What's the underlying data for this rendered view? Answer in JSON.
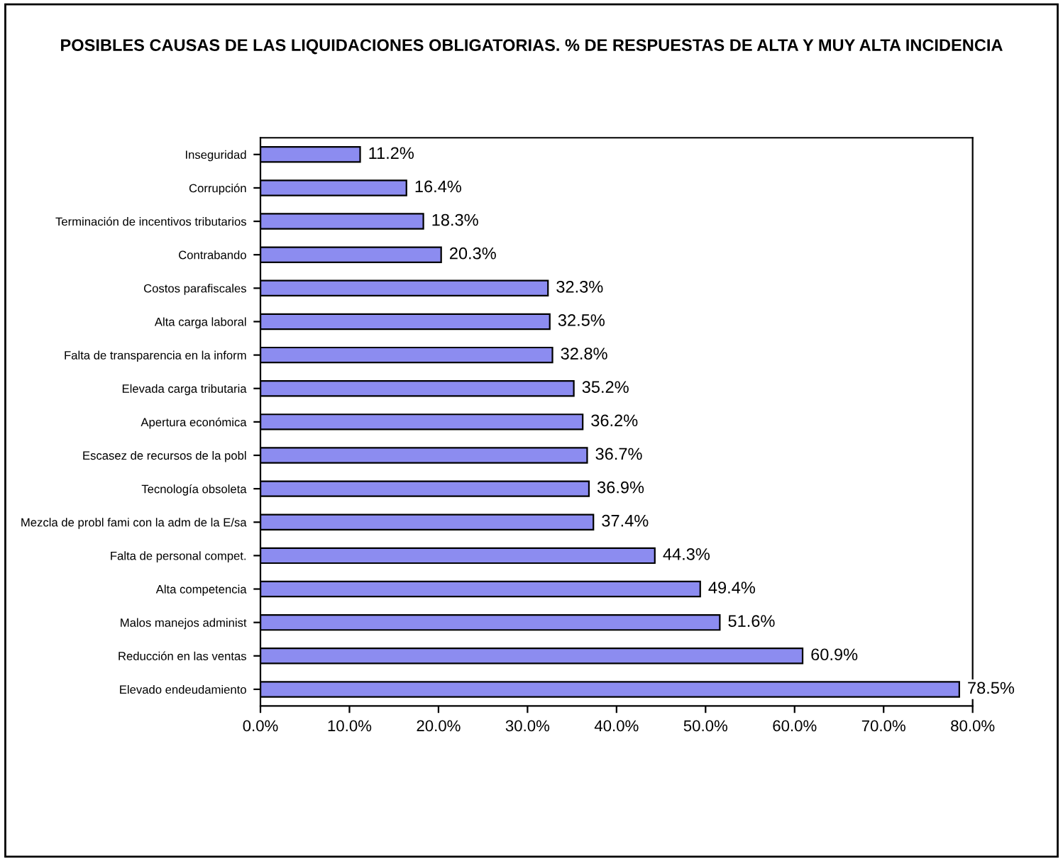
{
  "chart_data": {
    "type": "bar",
    "orientation": "horizontal",
    "title": "POSIBLES CAUSAS DE LAS LIQUIDACIONES OBLIGATORIAS. % DE RESPUESTAS DE ALTA Y MUY ALTA INCIDENCIA",
    "categories": [
      "Inseguridad",
      "Corrupción",
      "Terminación de incentivos tributarios",
      "Contrabando",
      "Costos parafiscales",
      "Alta carga laboral",
      "Falta de transparencia en la inform",
      "Elevada carga tributaria",
      "Apertura económica",
      "Escasez de recursos de la pobl",
      "Tecnología obsoleta",
      "Mezcla de probl fami con la adm de la E/sa",
      "Falta de personal compet.",
      "Alta competencia",
      "Malos manejos administ",
      "Reducción en las ventas",
      "Elevado endeudamiento"
    ],
    "values": [
      11.2,
      16.4,
      18.3,
      20.3,
      32.3,
      32.5,
      32.8,
      35.2,
      36.2,
      36.7,
      36.9,
      37.4,
      44.3,
      49.4,
      51.6,
      60.9,
      78.5
    ],
    "value_labels": [
      "11.2%",
      "16.4%",
      "18.3%",
      "20.3%",
      "32.3%",
      "32.5%",
      "32.8%",
      "35.2%",
      "36.2%",
      "36.7%",
      "36.9%",
      "37.4%",
      "44.3%",
      "49.4%",
      "51.6%",
      "60.9%",
      "78.5%"
    ],
    "color": "#8c8cf0",
    "xlim": [
      0,
      80
    ],
    "xticks": [
      {
        "value": 0,
        "label": "0.0%"
      },
      {
        "value": 10,
        "label": "10.0%"
      },
      {
        "value": 20,
        "label": "20.0%"
      },
      {
        "value": 30,
        "label": "30.0%"
      },
      {
        "value": 40,
        "label": "40.0%"
      },
      {
        "value": 50,
        "label": "50.0%"
      },
      {
        "value": 60,
        "label": "60.0%"
      },
      {
        "value": 70,
        "label": "70.0%"
      },
      {
        "value": 80,
        "label": "80.0%"
      }
    ],
    "grid": false,
    "legend": false
  }
}
